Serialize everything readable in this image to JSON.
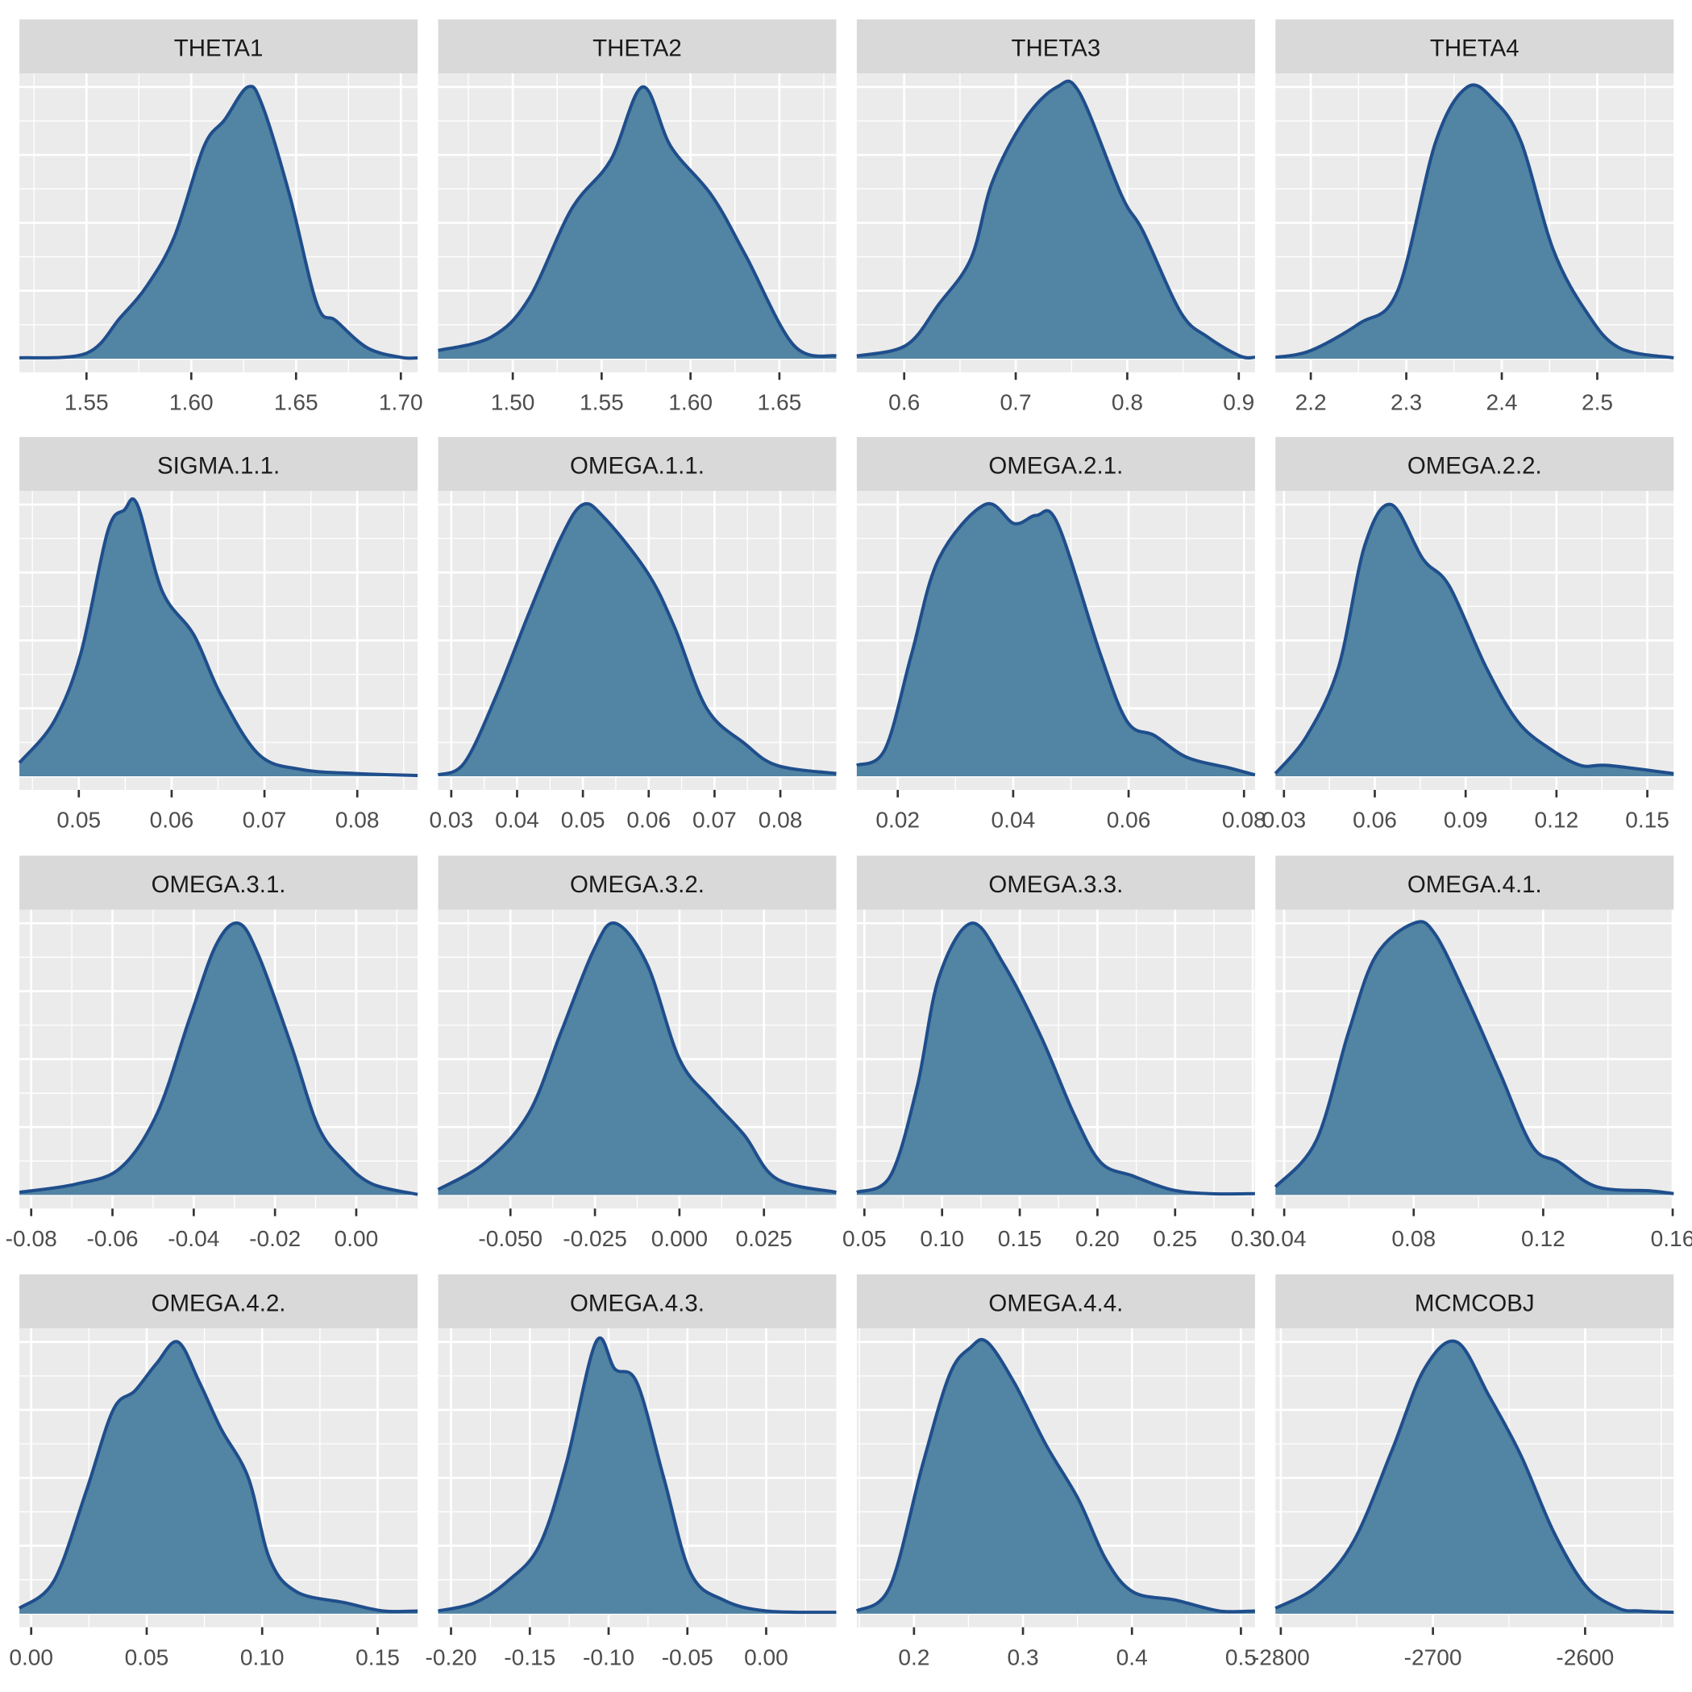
{
  "chart_data": {
    "type": "area",
    "subtype": "density-facets",
    "layout": "4x4 facet grid",
    "y_axis_labels": "none",
    "grid": true,
    "colors": {
      "fill": "#5284a3",
      "line": "#1f4e8c",
      "panel": "#ebebeb",
      "strip": "#d9d9d9"
    },
    "panels": [
      {
        "title": "THETA1",
        "xlim": [
          1.518,
          1.708
        ],
        "ticks": [
          1.55,
          1.6,
          1.65,
          1.7
        ],
        "tick_labels": [
          "1.55",
          "1.60",
          "1.65",
          "1.70"
        ],
        "x": [
          1.518,
          1.55,
          1.566,
          1.579,
          1.592,
          1.606,
          1.616,
          1.627,
          1.634,
          1.647,
          1.66,
          1.669,
          1.684,
          1.7,
          1.708
        ],
        "density": [
          0.003,
          0.02,
          0.15,
          0.27,
          0.45,
          0.78,
          0.88,
          1.0,
          0.93,
          0.6,
          0.2,
          0.14,
          0.04,
          0.005,
          0.003
        ]
      },
      {
        "title": "THETA2",
        "xlim": [
          1.458,
          1.682
        ],
        "ticks": [
          1.5,
          1.55,
          1.6,
          1.65
        ],
        "tick_labels": [
          "1.50",
          "1.55",
          "1.60",
          "1.65"
        ],
        "x": [
          1.458,
          1.488,
          1.509,
          1.533,
          1.555,
          1.573,
          1.589,
          1.612,
          1.631,
          1.658,
          1.682
        ],
        "density": [
          0.03,
          0.08,
          0.22,
          0.55,
          0.73,
          1.0,
          0.78,
          0.6,
          0.38,
          0.05,
          0.01
        ]
      },
      {
        "title": "THETA3",
        "xlim": [
          0.5575,
          0.9145
        ],
        "ticks": [
          0.6,
          0.7,
          0.8,
          0.9
        ],
        "tick_labels": [
          "0.6",
          "0.7",
          "0.8",
          "0.9"
        ],
        "x": [
          0.5575,
          0.602,
          0.631,
          0.66,
          0.679,
          0.708,
          0.737,
          0.757,
          0.795,
          0.814,
          0.848,
          0.872,
          0.901,
          0.9145
        ],
        "density": [
          0.01,
          0.05,
          0.2,
          0.37,
          0.65,
          0.88,
          1.0,
          0.98,
          0.6,
          0.47,
          0.17,
          0.08,
          0.01,
          0.005
        ]
      },
      {
        "title": "THETA4",
        "xlim": [
          2.163,
          2.58
        ],
        "ticks": [
          2.2,
          2.3,
          2.4,
          2.5
        ],
        "tick_labels": [
          "2.2",
          "2.3",
          "2.4",
          "2.5"
        ],
        "x": [
          2.163,
          2.2,
          2.251,
          2.291,
          2.331,
          2.364,
          2.392,
          2.42,
          2.454,
          2.489,
          2.523,
          2.58
        ],
        "density": [
          0.005,
          0.03,
          0.13,
          0.25,
          0.8,
          1.0,
          0.95,
          0.8,
          0.4,
          0.17,
          0.04,
          0.003
        ]
      },
      {
        "title": "SIGMA.1.1.",
        "xlim": [
          0.0436,
          0.0865
        ],
        "ticks": [
          0.05,
          0.06,
          0.07,
          0.08
        ],
        "tick_labels": [
          "0.05",
          "0.06",
          "0.07",
          "0.08"
        ],
        "x": [
          0.0436,
          0.0473,
          0.0502,
          0.0531,
          0.0549,
          0.0563,
          0.059,
          0.0624,
          0.0653,
          0.0694,
          0.074,
          0.08,
          0.0865
        ],
        "density": [
          0.05,
          0.2,
          0.45,
          0.9,
          0.98,
          1.0,
          0.68,
          0.52,
          0.3,
          0.08,
          0.025,
          0.01,
          0.003
        ]
      },
      {
        "title": "OMEGA.1.1.",
        "xlim": [
          0.028,
          0.0885
        ],
        "ticks": [
          0.03,
          0.04,
          0.05,
          0.06,
          0.07,
          0.08
        ],
        "tick_labels": [
          "0.03",
          "0.04",
          "0.05",
          "0.06",
          "0.07",
          "0.08"
        ],
        "x": [
          0.028,
          0.032,
          0.0369,
          0.0418,
          0.0467,
          0.05,
          0.0533,
          0.0598,
          0.0639,
          0.0688,
          0.0746,
          0.0795,
          0.0885
        ],
        "density": [
          0.005,
          0.05,
          0.3,
          0.6,
          0.88,
          1.0,
          0.95,
          0.75,
          0.55,
          0.25,
          0.12,
          0.04,
          0.01
        ]
      },
      {
        "title": "OMEGA.2.1.",
        "xlim": [
          0.0129,
          0.0819
        ],
        "ticks": [
          0.02,
          0.04,
          0.06,
          0.08
        ],
        "tick_labels": [
          "0.02",
          "0.04",
          "0.06",
          "0.08"
        ],
        "x": [
          0.0129,
          0.0178,
          0.0224,
          0.0271,
          0.0351,
          0.0402,
          0.044,
          0.0477,
          0.0551,
          0.0598,
          0.0645,
          0.0701,
          0.0776,
          0.0819
        ],
        "density": [
          0.04,
          0.1,
          0.45,
          0.8,
          1.0,
          0.93,
          0.96,
          0.93,
          0.45,
          0.2,
          0.15,
          0.07,
          0.03,
          0.005
        ]
      },
      {
        "title": "OMEGA.2.2.",
        "xlim": [
          0.0272,
          0.1587
        ],
        "ticks": [
          0.03,
          0.06,
          0.09,
          0.12,
          0.15
        ],
        "tick_labels": [
          "0.03",
          "0.06",
          "0.09",
          "0.12",
          "0.15"
        ],
        "x": [
          0.0272,
          0.0376,
          0.048,
          0.0567,
          0.0654,
          0.0759,
          0.0846,
          0.0968,
          0.1073,
          0.118,
          0.128,
          0.137,
          0.1587
        ],
        "density": [
          0.01,
          0.15,
          0.4,
          0.85,
          1.0,
          0.8,
          0.7,
          0.4,
          0.2,
          0.1,
          0.04,
          0.04,
          0.01
        ]
      },
      {
        "title": "OMEGA.3.1.",
        "xlim": [
          -0.0829,
          0.0151
        ],
        "ticks": [
          -0.08,
          -0.06,
          -0.04,
          -0.02,
          0.0
        ],
        "tick_labels": [
          "-0.08",
          "-0.06",
          "-0.04",
          "-0.02",
          "0.00"
        ],
        "x": [
          -0.0829,
          -0.069,
          -0.058,
          -0.049,
          -0.041,
          -0.0345,
          -0.029,
          -0.024,
          -0.016,
          -0.0093,
          -0.0027,
          0.004,
          0.0151
        ],
        "density": [
          0.01,
          0.04,
          0.1,
          0.3,
          0.65,
          0.92,
          1.0,
          0.88,
          0.55,
          0.25,
          0.12,
          0.04,
          0.002
        ]
      },
      {
        "title": "OMEGA.3.2.",
        "xlim": [
          -0.0714,
          0.0464
        ],
        "ticks": [
          -0.05,
          -0.025,
          0.0,
          0.025
        ],
        "tick_labels": [
          "-0.050",
          "-0.025",
          "0.000",
          "0.025"
        ],
        "x": [
          -0.0714,
          -0.0574,
          -0.0446,
          -0.035,
          -0.0254,
          -0.019,
          -0.0096,
          0.0,
          0.0096,
          0.0192,
          0.0287,
          0.0464
        ],
        "density": [
          0.02,
          0.12,
          0.3,
          0.6,
          0.9,
          1.0,
          0.85,
          0.5,
          0.35,
          0.22,
          0.06,
          0.01
        ]
      },
      {
        "title": "OMEGA.3.3.",
        "xlim": [
          0.0451,
          0.3014
        ],
        "ticks": [
          0.05,
          0.1,
          0.15,
          0.2,
          0.25,
          0.3
        ],
        "tick_labels": [
          "0.05",
          "0.10",
          "0.15",
          "0.20",
          "0.25",
          "0.30"
        ],
        "x": [
          0.0451,
          0.0667,
          0.084,
          0.0979,
          0.1188,
          0.1396,
          0.1639,
          0.1847,
          0.2021,
          0.2229,
          0.2472,
          0.2715,
          0.3014
        ],
        "density": [
          0.01,
          0.07,
          0.4,
          0.8,
          1.0,
          0.85,
          0.58,
          0.3,
          0.12,
          0.07,
          0.02,
          0.005,
          0.005
        ]
      },
      {
        "title": "OMEGA.4.1.",
        "xlim": [
          0.0373,
          0.1603
        ],
        "ticks": [
          0.04,
          0.08,
          0.12,
          0.16
        ],
        "tick_labels": [
          "0.04",
          "0.08",
          "0.12",
          "0.16"
        ],
        "x": [
          0.0373,
          0.0499,
          0.0599,
          0.0683,
          0.08,
          0.0866,
          0.0966,
          0.1066,
          0.1166,
          0.125,
          0.1366,
          0.1533,
          0.1603
        ],
        "density": [
          0.03,
          0.2,
          0.6,
          0.88,
          1.0,
          0.96,
          0.72,
          0.45,
          0.18,
          0.12,
          0.03,
          0.015,
          0.005
        ]
      },
      {
        "title": "OMEGA.4.2.",
        "xlim": [
          -0.0051,
          0.1673
        ],
        "ticks": [
          0.0,
          0.05,
          0.1,
          0.15
        ],
        "tick_labels": [
          "0.00",
          "0.05",
          "0.10",
          "0.15"
        ],
        "x": [
          -0.0051,
          0.0098,
          0.0238,
          0.0355,
          0.0449,
          0.0542,
          0.0635,
          0.0729,
          0.0822,
          0.094,
          0.1033,
          0.115,
          0.136,
          0.1524,
          0.1673
        ],
        "density": [
          0.02,
          0.12,
          0.45,
          0.75,
          0.82,
          0.92,
          1.0,
          0.85,
          0.68,
          0.5,
          0.2,
          0.08,
          0.04,
          0.01,
          0.01
        ]
      },
      {
        "title": "OMEGA.4.3.",
        "xlim": [
          -0.2082,
          0.0445
        ],
        "ticks": [
          -0.2,
          -0.15,
          -0.1,
          -0.05,
          0.0
        ],
        "tick_labels": [
          "-0.20",
          "-0.15",
          "-0.10",
          "-0.05",
          "0.00"
        ],
        "x": [
          -0.2082,
          -0.185,
          -0.164,
          -0.144,
          -0.127,
          -0.108,
          -0.096,
          -0.082,
          -0.065,
          -0.048,
          -0.027,
          0.0,
          0.0445
        ],
        "density": [
          0.01,
          0.04,
          0.12,
          0.25,
          0.55,
          1.0,
          0.9,
          0.85,
          0.5,
          0.15,
          0.05,
          0.01,
          0.005
        ]
      },
      {
        "title": "OMEGA.4.4.",
        "xlim": [
          0.1475,
          0.5129
        ],
        "ticks": [
          0.2,
          0.3,
          0.4,
          0.5
        ],
        "tick_labels": [
          "0.2",
          "0.3",
          "0.4",
          "0.5"
        ],
        "x": [
          0.1475,
          0.178,
          0.208,
          0.2327,
          0.252,
          0.267,
          0.292,
          0.3213,
          0.351,
          0.376,
          0.401,
          0.44,
          0.48,
          0.5129
        ],
        "density": [
          0.01,
          0.1,
          0.55,
          0.88,
          0.98,
          1.0,
          0.85,
          0.62,
          0.42,
          0.2,
          0.08,
          0.05,
          0.01,
          0.01
        ]
      },
      {
        "title": "MCMCOBJ",
        "xlim": [
          -2803.5,
          -2541.8
        ],
        "ticks": [
          -2800,
          -2700,
          -2600
        ],
        "tick_labels": [
          "-2800",
          "-2700",
          "-2600"
        ],
        "x": [
          -2803.5,
          -2776.6,
          -2751.8,
          -2727,
          -2705.7,
          -2684.4,
          -2663,
          -2642,
          -2620.6,
          -2599.3,
          -2578,
          -2564,
          -2541.8
        ],
        "density": [
          0.02,
          0.1,
          0.27,
          0.6,
          0.9,
          1.0,
          0.8,
          0.58,
          0.3,
          0.1,
          0.02,
          0.01,
          0.005
        ]
      }
    ]
  }
}
